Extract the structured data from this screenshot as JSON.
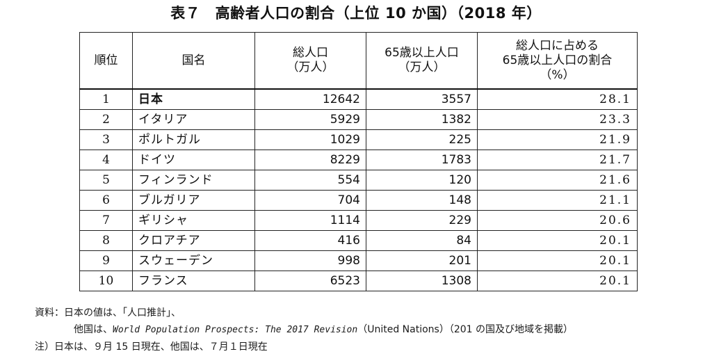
{
  "title": "表７　高齢者人口の割合（上位 10 か国）（2018 年）",
  "table": {
    "headers": {
      "rank": "順位",
      "country": "国名",
      "total_line1": "総人口",
      "total_line2": "（万人）",
      "elderly_line1": "65歳以上人口",
      "elderly_line2": "（万人）",
      "ratio_line1": "総人口に占める",
      "ratio_line2": "65歳以上人口の割合",
      "ratio_line3": "（%）"
    },
    "rows": [
      {
        "rank": "1",
        "country": "日本",
        "total": "12642",
        "elderly": "3557",
        "ratio": "28.1"
      },
      {
        "rank": "2",
        "country": "イタリア",
        "total": "5929",
        "elderly": "1382",
        "ratio": "23.3"
      },
      {
        "rank": "3",
        "country": "ポルトガル",
        "total": "1029",
        "elderly": "225",
        "ratio": "21.9"
      },
      {
        "rank": "4",
        "country": "ドイツ",
        "total": "8229",
        "elderly": "1783",
        "ratio": "21.7"
      },
      {
        "rank": "5",
        "country": "フィンランド",
        "total": "554",
        "elderly": "120",
        "ratio": "21.6"
      },
      {
        "rank": "6",
        "country": "ブルガリア",
        "total": "704",
        "elderly": "148",
        "ratio": "21.1"
      },
      {
        "rank": "7",
        "country": "ギリシャ",
        "total": "1114",
        "elderly": "229",
        "ratio": "20.6"
      },
      {
        "rank": "8",
        "country": "クロアチア",
        "total": "416",
        "elderly": "84",
        "ratio": "20.1"
      },
      {
        "rank": "9",
        "country": "スウェーデン",
        "total": "998",
        "elderly": "201",
        "ratio": "20.1"
      },
      {
        "rank": "10",
        "country": "フランス",
        "total": "6523",
        "elderly": "1308",
        "ratio": "20.1"
      }
    ]
  },
  "notes": {
    "source_prefix": "資料：日本の値は、「人口推計」、",
    "others_prefix": "他国は、",
    "others_title": "World Population Prospects: The 2017 Revision",
    "others_suffix": "（United Nations）（201 の国及び地域を掲載）",
    "footnote": "注）日本は、９月 15 日現在、他国は、７月１日現在"
  }
}
